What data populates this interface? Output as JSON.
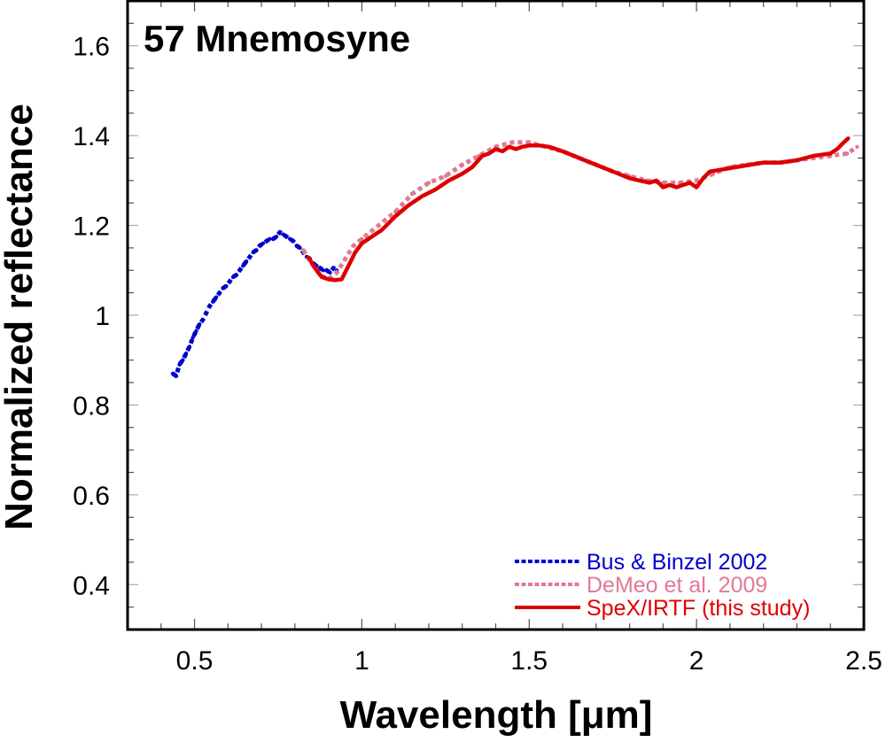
{
  "chart_data": {
    "type": "line",
    "title": "57 Mnemosyne",
    "xlabel": "Wavelength [μm]",
    "ylabel": "Normalized reflectance",
    "xlim": [
      0.3,
      2.5
    ],
    "ylim": [
      0.3,
      1.7
    ],
    "xticks": [
      0.5,
      1,
      1.5,
      2,
      2.5
    ],
    "xtick_labels": [
      "0.5",
      "1",
      "1.5",
      "2",
      "2.5"
    ],
    "yticks": [
      0.4,
      0.6,
      0.8,
      1.0,
      1.2,
      1.4,
      1.6
    ],
    "ytick_labels": [
      "0.4",
      "0.6",
      "0.8",
      "1",
      "1.2",
      "1.4",
      "1.6"
    ],
    "x_minor_step": 0.1,
    "y_minor_step": 0.05,
    "grid": false,
    "legend_position": "bottom-right",
    "series": [
      {
        "name": "Bus & Binzel 2002",
        "color": "#0000cc",
        "style": "dotted",
        "x": [
          0.435,
          0.445,
          0.455,
          0.465,
          0.475,
          0.485,
          0.495,
          0.505,
          0.515,
          0.525,
          0.535,
          0.545,
          0.555,
          0.565,
          0.575,
          0.585,
          0.595,
          0.605,
          0.615,
          0.625,
          0.635,
          0.645,
          0.655,
          0.665,
          0.675,
          0.685,
          0.695,
          0.705,
          0.715,
          0.725,
          0.735,
          0.745,
          0.755,
          0.765,
          0.775,
          0.785,
          0.795,
          0.805,
          0.815,
          0.825,
          0.835,
          0.845,
          0.855,
          0.865,
          0.875,
          0.885,
          0.895,
          0.905,
          0.915,
          0.925
        ],
        "values": [
          0.87,
          0.865,
          0.89,
          0.9,
          0.915,
          0.93,
          0.95,
          0.965,
          0.98,
          0.99,
          1.005,
          1.02,
          1.03,
          1.04,
          1.05,
          1.06,
          1.065,
          1.075,
          1.085,
          1.09,
          1.1,
          1.11,
          1.12,
          1.13,
          1.14,
          1.145,
          1.155,
          1.16,
          1.165,
          1.17,
          1.17,
          1.175,
          1.185,
          1.18,
          1.175,
          1.17,
          1.165,
          1.155,
          1.15,
          1.14,
          1.13,
          1.125,
          1.115,
          1.11,
          1.105,
          1.1,
          1.1,
          1.095,
          1.105,
          1.1
        ]
      },
      {
        "name": "DeMeo et al. 2009",
        "color": "#e07a95",
        "style": "dotted",
        "x": [
          0.825,
          0.85,
          0.875,
          0.9,
          0.925,
          0.95,
          0.975,
          1.0,
          1.05,
          1.1,
          1.15,
          1.2,
          1.25,
          1.3,
          1.35,
          1.4,
          1.45,
          1.5,
          1.55,
          1.6,
          1.65,
          1.7,
          1.75,
          1.8,
          1.85,
          1.9,
          1.95,
          2.0,
          2.05,
          2.1,
          2.15,
          2.2,
          2.25,
          2.3,
          2.35,
          2.4,
          2.45,
          2.48
        ],
        "values": [
          1.145,
          1.115,
          1.09,
          1.08,
          1.095,
          1.125,
          1.155,
          1.17,
          1.2,
          1.23,
          1.27,
          1.295,
          1.31,
          1.335,
          1.355,
          1.375,
          1.385,
          1.385,
          1.375,
          1.365,
          1.35,
          1.335,
          1.32,
          1.31,
          1.3,
          1.295,
          1.295,
          1.3,
          1.315,
          1.33,
          1.335,
          1.34,
          1.34,
          1.345,
          1.35,
          1.355,
          1.36,
          1.375
        ]
      },
      {
        "name": "SpeX/IRTF (this study)",
        "color": "#dd0000",
        "style": "solid",
        "x": [
          0.84,
          0.86,
          0.88,
          0.9,
          0.92,
          0.94,
          0.96,
          0.98,
          1.0,
          1.03,
          1.06,
          1.1,
          1.14,
          1.18,
          1.22,
          1.26,
          1.3,
          1.33,
          1.36,
          1.38,
          1.4,
          1.42,
          1.44,
          1.46,
          1.48,
          1.5,
          1.53,
          1.56,
          1.6,
          1.65,
          1.7,
          1.75,
          1.8,
          1.83,
          1.86,
          1.88,
          1.9,
          1.92,
          1.94,
          1.96,
          1.98,
          2.0,
          2.02,
          2.04,
          2.08,
          2.12,
          2.16,
          2.2,
          2.25,
          2.3,
          2.35,
          2.4,
          2.42,
          2.44,
          2.455
        ],
        "values": [
          1.13,
          1.105,
          1.085,
          1.08,
          1.078,
          1.08,
          1.11,
          1.14,
          1.16,
          1.175,
          1.19,
          1.22,
          1.245,
          1.265,
          1.28,
          1.3,
          1.315,
          1.33,
          1.355,
          1.36,
          1.37,
          1.365,
          1.375,
          1.37,
          1.375,
          1.378,
          1.378,
          1.375,
          1.365,
          1.35,
          1.335,
          1.32,
          1.305,
          1.3,
          1.295,
          1.3,
          1.285,
          1.29,
          1.285,
          1.29,
          1.295,
          1.285,
          1.305,
          1.32,
          1.325,
          1.33,
          1.335,
          1.34,
          1.34,
          1.345,
          1.355,
          1.36,
          1.37,
          1.385,
          1.395
        ]
      }
    ]
  }
}
